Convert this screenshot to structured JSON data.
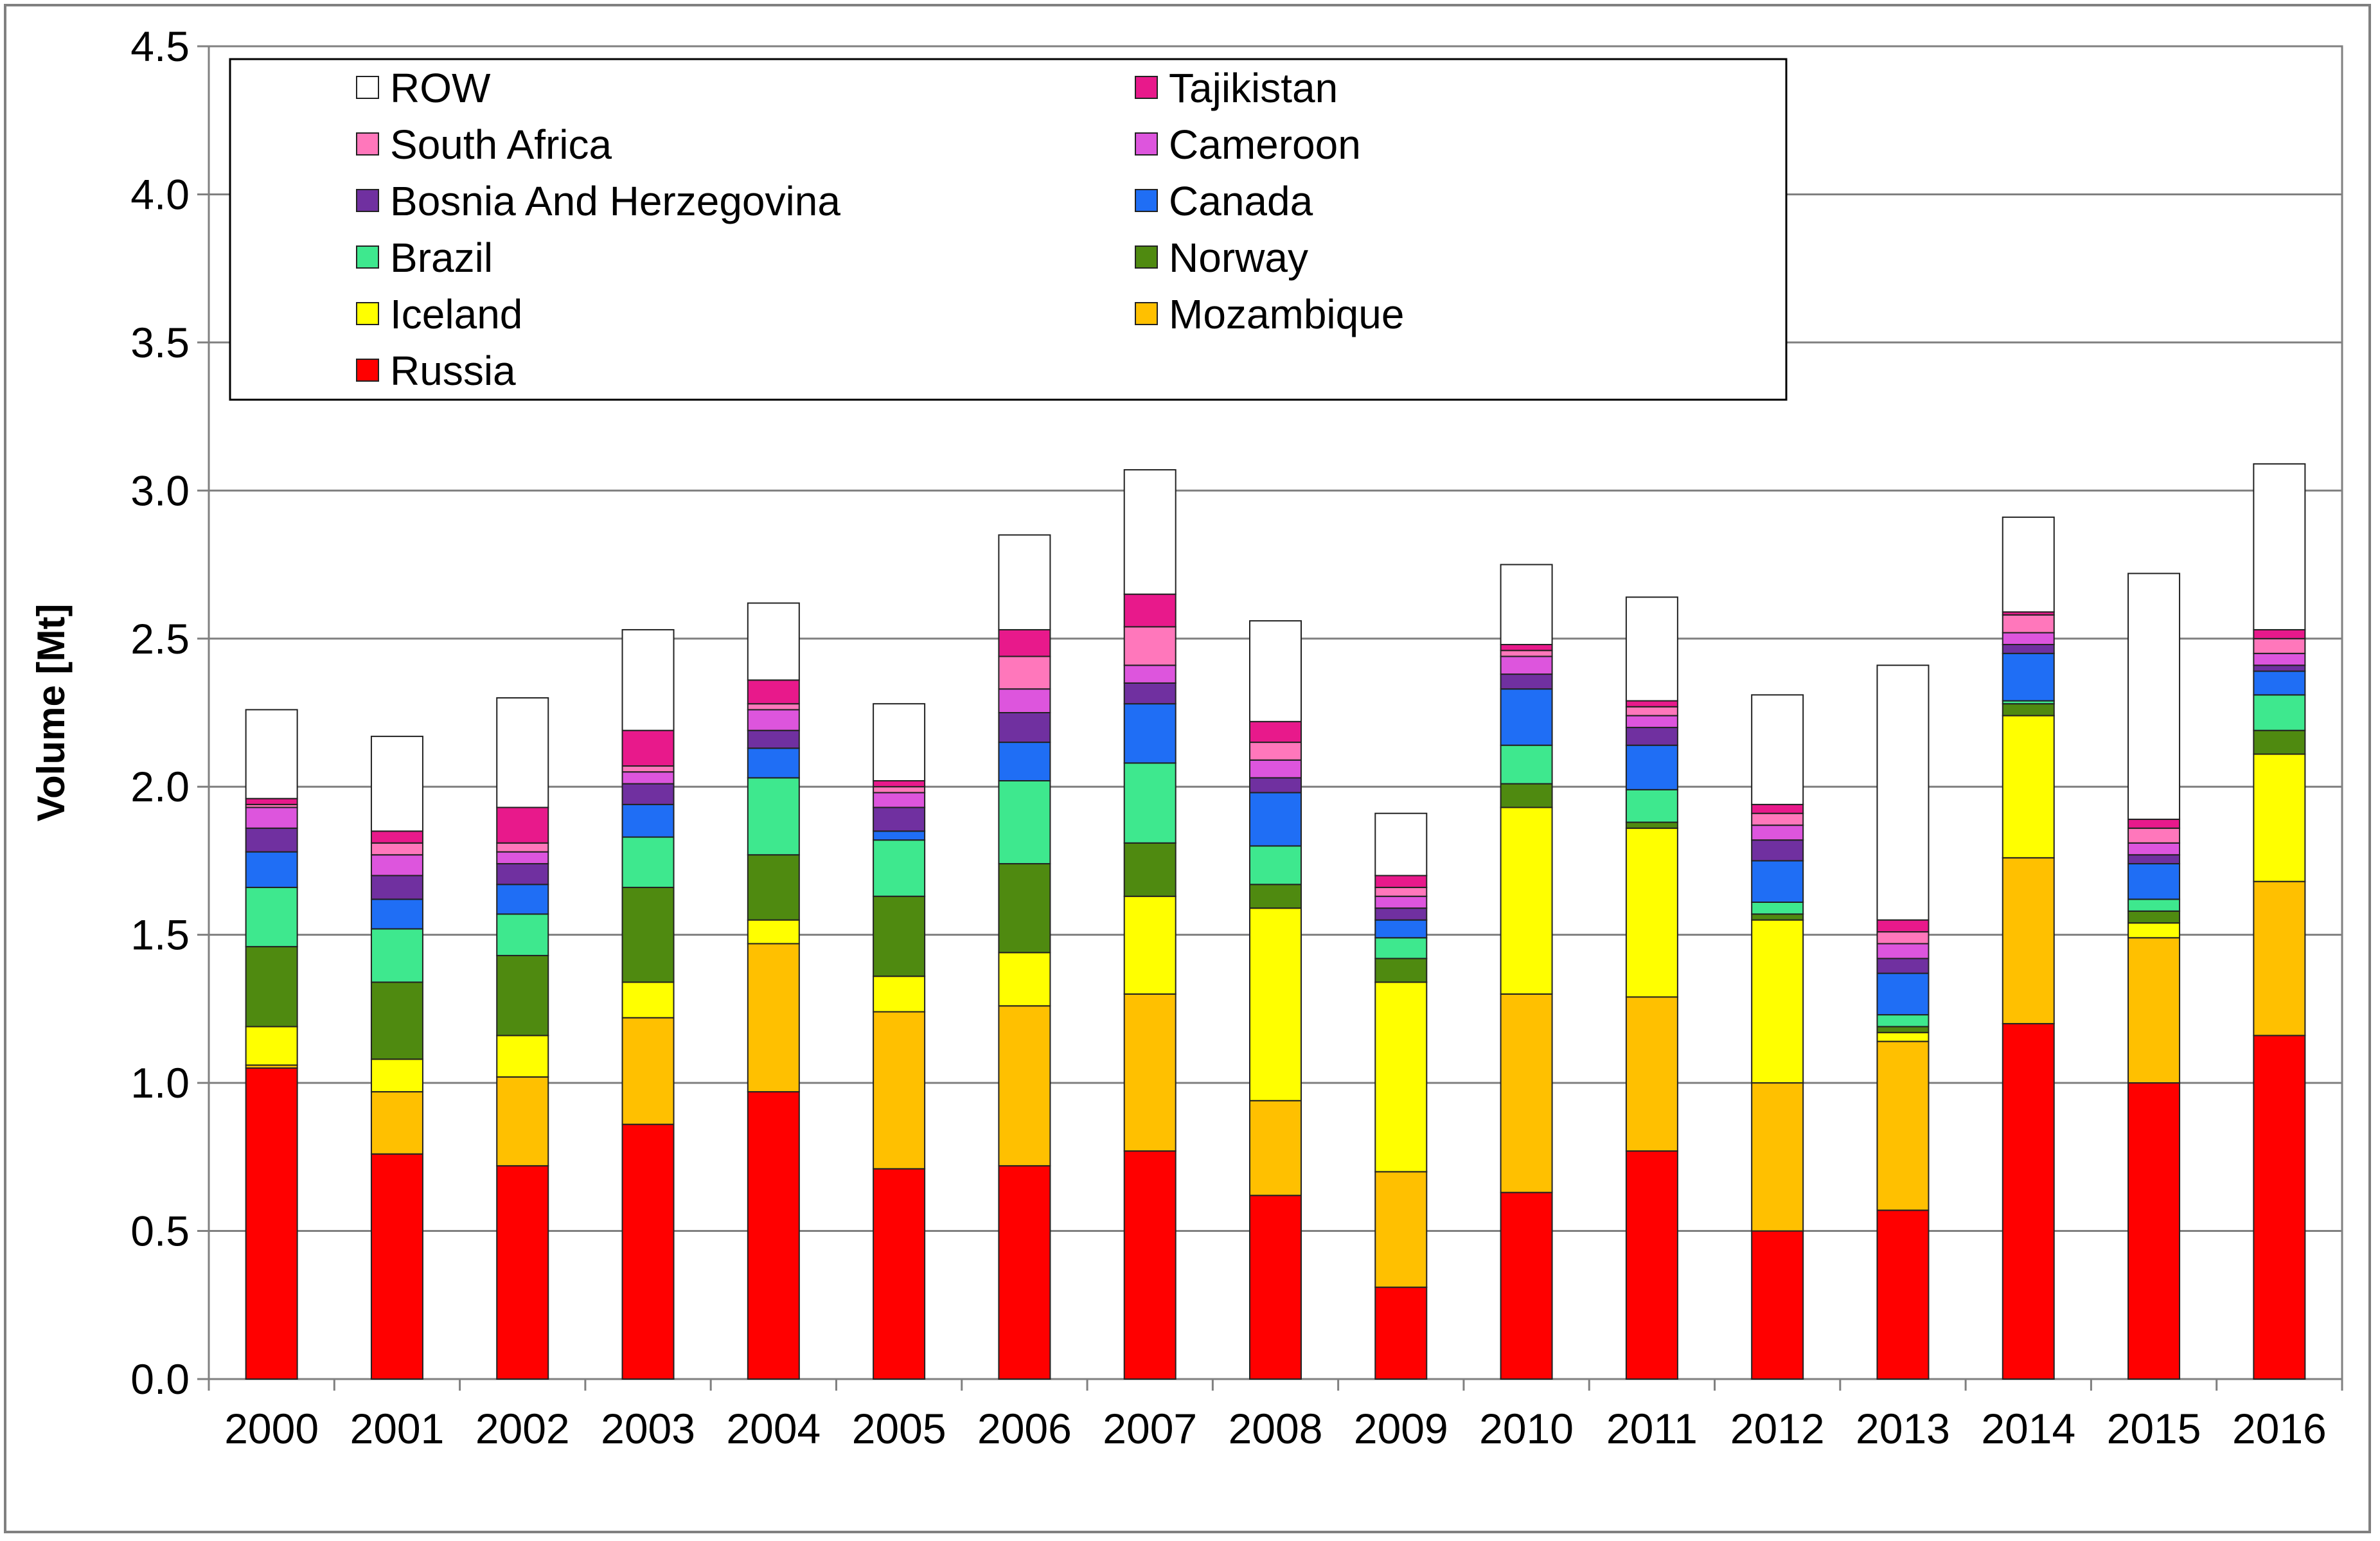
{
  "chart_data": {
    "type": "bar",
    "stacked": true,
    "title": "",
    "xlabel": "",
    "ylabel": "Volume [Mt]",
    "ylim": [
      0,
      4.5
    ],
    "yticks": [
      "0.0",
      "0.5",
      "1.0",
      "1.5",
      "2.0",
      "2.5",
      "3.0",
      "3.5",
      "4.0",
      "4.5"
    ],
    "grid": "horizontal",
    "legend_position": "top-left",
    "categories": [
      "2000",
      "2001",
      "2002",
      "2003",
      "2004",
      "2005",
      "2006",
      "2007",
      "2008",
      "2009",
      "2010",
      "2011",
      "2012",
      "2013",
      "2014",
      "2015",
      "2016"
    ],
    "legend_order": [
      "ROW",
      "Tajikistan",
      "South Africa",
      "Cameroon",
      "Bosnia And Herzegovina",
      "Canada",
      "Brazil",
      "Norway",
      "Iceland",
      "Mozambique",
      "Russia"
    ],
    "series": [
      {
        "name": "Russia",
        "color": "#ff0000",
        "values": [
          1.05,
          0.76,
          0.72,
          0.86,
          0.97,
          0.71,
          0.72,
          0.77,
          0.62,
          0.31,
          0.63,
          0.77,
          0.5,
          0.57,
          1.2,
          1.0,
          1.16
        ]
      },
      {
        "name": "Mozambique",
        "color": "#ffc000",
        "values": [
          0.01,
          0.21,
          0.3,
          0.36,
          0.5,
          0.53,
          0.54,
          0.53,
          0.32,
          0.39,
          0.67,
          0.52,
          0.5,
          0.57,
          0.56,
          0.49,
          0.52
        ]
      },
      {
        "name": "Iceland",
        "color": "#ffff00",
        "values": [
          0.13,
          0.11,
          0.14,
          0.12,
          0.08,
          0.12,
          0.18,
          0.33,
          0.65,
          0.64,
          0.63,
          0.57,
          0.55,
          0.03,
          0.48,
          0.05,
          0.43
        ]
      },
      {
        "name": "Norway",
        "color": "#4f8a10",
        "values": [
          0.27,
          0.26,
          0.27,
          0.32,
          0.22,
          0.27,
          0.3,
          0.18,
          0.08,
          0.08,
          0.08,
          0.02,
          0.02,
          0.02,
          0.04,
          0.04,
          0.08
        ]
      },
      {
        "name": "Brazil",
        "color": "#3ee88e",
        "values": [
          0.2,
          0.18,
          0.14,
          0.17,
          0.26,
          0.19,
          0.28,
          0.27,
          0.13,
          0.07,
          0.13,
          0.11,
          0.04,
          0.04,
          0.01,
          0.04,
          0.12
        ]
      },
      {
        "name": "Canada",
        "color": "#1f6ef5",
        "values": [
          0.12,
          0.1,
          0.1,
          0.11,
          0.1,
          0.03,
          0.13,
          0.2,
          0.18,
          0.06,
          0.19,
          0.15,
          0.14,
          0.14,
          0.16,
          0.12,
          0.08
        ]
      },
      {
        "name": "Bosnia And Herzegovina",
        "color": "#7030a0",
        "values": [
          0.08,
          0.08,
          0.07,
          0.07,
          0.06,
          0.08,
          0.1,
          0.07,
          0.05,
          0.04,
          0.05,
          0.06,
          0.07,
          0.05,
          0.03,
          0.03,
          0.02
        ]
      },
      {
        "name": "Cameroon",
        "color": "#dd55dd",
        "values": [
          0.07,
          0.07,
          0.04,
          0.04,
          0.07,
          0.05,
          0.08,
          0.06,
          0.06,
          0.04,
          0.06,
          0.04,
          0.05,
          0.05,
          0.04,
          0.04,
          0.04
        ]
      },
      {
        "name": "South Africa",
        "color": "#ff77bb",
        "values": [
          0.01,
          0.04,
          0.03,
          0.02,
          0.02,
          0.02,
          0.11,
          0.13,
          0.06,
          0.03,
          0.02,
          0.03,
          0.04,
          0.04,
          0.06,
          0.05,
          0.05
        ]
      },
      {
        "name": "Tajikistan",
        "color": "#e8198b",
        "values": [
          0.02,
          0.04,
          0.12,
          0.12,
          0.08,
          0.02,
          0.09,
          0.11,
          0.07,
          0.04,
          0.02,
          0.02,
          0.03,
          0.04,
          0.01,
          0.03,
          0.03
        ]
      },
      {
        "name": "ROW",
        "color": "#ffffff",
        "values": [
          0.3,
          0.32,
          0.37,
          0.34,
          0.26,
          0.26,
          0.32,
          0.42,
          0.34,
          0.21,
          0.27,
          0.35,
          0.37,
          0.86,
          0.32,
          0.83,
          0.56
        ]
      }
    ]
  }
}
